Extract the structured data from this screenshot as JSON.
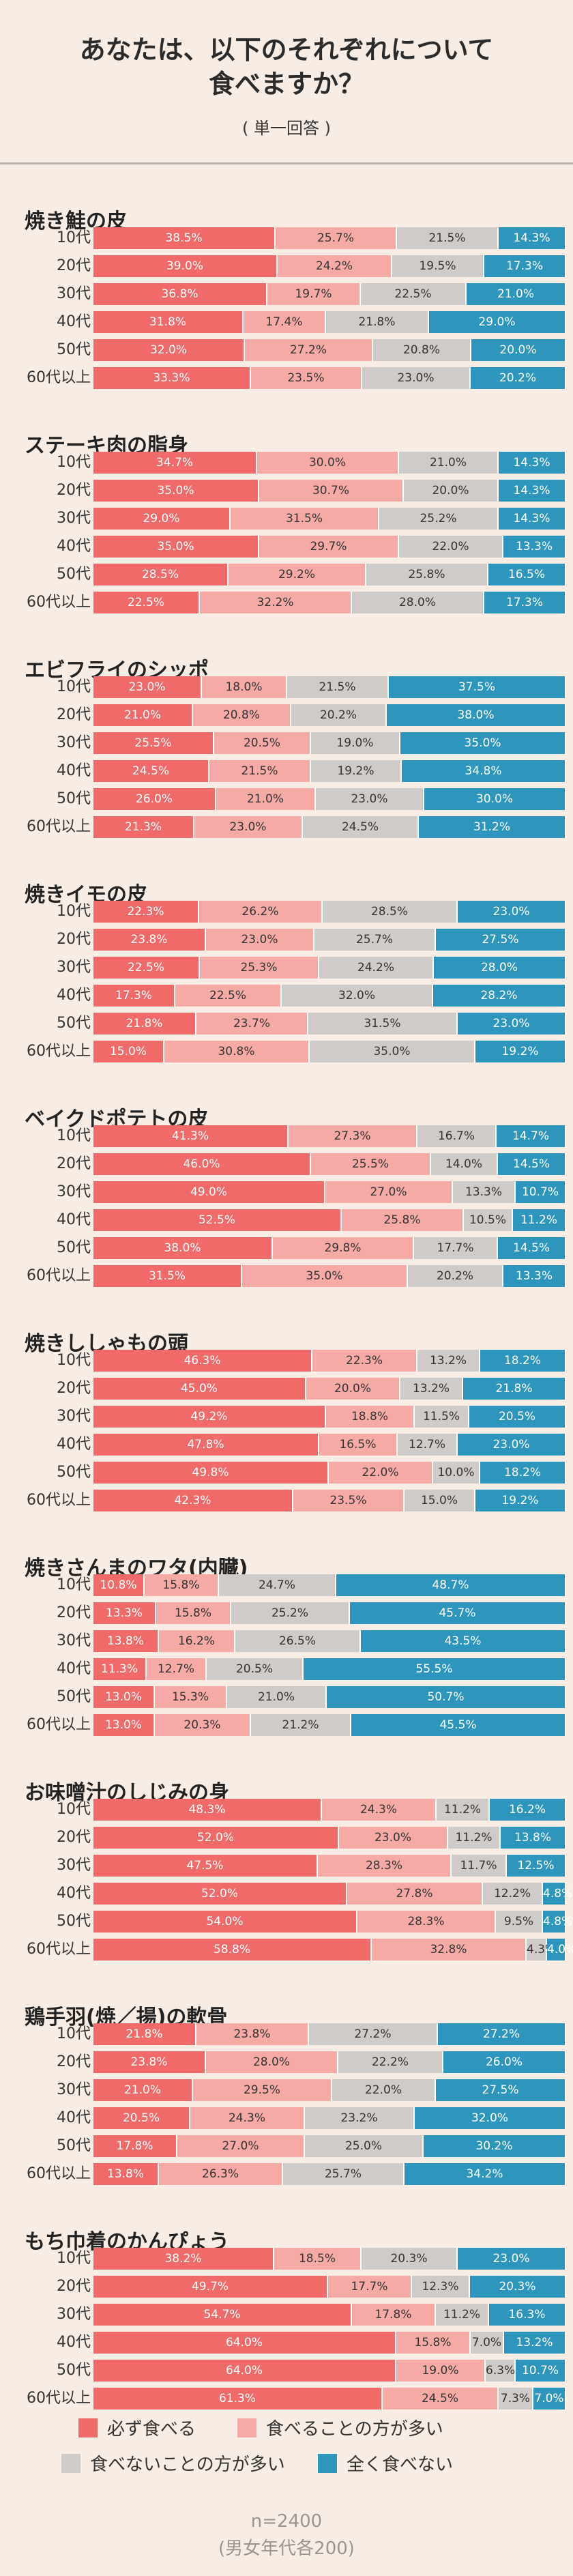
{
  "header": {
    "title_line1": "あなたは、以下のそれぞれについて",
    "title_line2": "食べますか？",
    "subtitle": "( 単一回答 )"
  },
  "legend": [
    {
      "label": "必ず食べる",
      "color": "#ef6a69"
    },
    {
      "label": "食べることの方が多い",
      "color": "#f5aaa6"
    },
    {
      "label": "食べないことの方が多い",
      "color": "#cfcbc8"
    },
    {
      "label": "全く食べない",
      "color": "#2e95bd"
    }
  ],
  "footer": {
    "n": "n=2400",
    "note": "(男女年代各200)"
  },
  "chart_data": {
    "type": "bar",
    "orientation": "horizontal",
    "stacked": true,
    "normalized": true,
    "unit": "%",
    "title": "あなたは、以下のそれぞれについて食べますか？",
    "series_names": [
      "必ず食べる",
      "食べることの方が多い",
      "食べないことの方が多い",
      "全く食べない"
    ],
    "categories": [
      "10代",
      "20代",
      "30代",
      "40代",
      "50代",
      "60代以上"
    ],
    "panels": [
      {
        "name": "焼き鮭の皮",
        "values": [
          [
            38.5,
            25.7,
            21.5,
            14.3
          ],
          [
            39.0,
            24.2,
            19.5,
            17.3
          ],
          [
            36.8,
            19.7,
            22.5,
            21.0
          ],
          [
            31.8,
            17.4,
            21.8,
            29.0
          ],
          [
            32.0,
            27.2,
            20.8,
            20.0
          ],
          [
            33.3,
            23.5,
            23.0,
            20.2
          ]
        ]
      },
      {
        "name": "ステーキ肉の脂身",
        "values": [
          [
            34.7,
            30.0,
            21.0,
            14.3
          ],
          [
            35.0,
            30.7,
            20.0,
            14.3
          ],
          [
            29.0,
            31.5,
            25.2,
            14.3
          ],
          [
            35.0,
            29.7,
            22.0,
            13.3
          ],
          [
            28.5,
            29.2,
            25.8,
            16.5
          ],
          [
            22.5,
            32.2,
            28.0,
            17.3
          ]
        ]
      },
      {
        "name": "エビフライのシッポ",
        "values": [
          [
            23.0,
            18.0,
            21.5,
            37.5
          ],
          [
            21.0,
            20.8,
            20.2,
            38.0
          ],
          [
            25.5,
            20.5,
            19.0,
            35.0
          ],
          [
            24.5,
            21.5,
            19.2,
            34.8
          ],
          [
            26.0,
            21.0,
            23.0,
            30.0
          ],
          [
            21.3,
            23.0,
            24.5,
            31.2
          ]
        ]
      },
      {
        "name": "焼きイモの皮",
        "values": [
          [
            22.3,
            26.2,
            28.5,
            23.0
          ],
          [
            23.8,
            23.0,
            25.7,
            27.5
          ],
          [
            22.5,
            25.3,
            24.2,
            28.0
          ],
          [
            17.3,
            22.5,
            32.0,
            28.2
          ],
          [
            21.8,
            23.7,
            31.5,
            23.0
          ],
          [
            15.0,
            30.8,
            35.0,
            19.2
          ]
        ]
      },
      {
        "name": "ベイクドポテトの皮",
        "values": [
          [
            41.3,
            27.3,
            16.7,
            14.7
          ],
          [
            46.0,
            25.5,
            14.0,
            14.5
          ],
          [
            49.0,
            27.0,
            13.3,
            10.7
          ],
          [
            52.5,
            25.8,
            10.5,
            11.2
          ],
          [
            38.0,
            29.8,
            17.7,
            14.5
          ],
          [
            31.5,
            35.0,
            20.2,
            13.3
          ]
        ]
      },
      {
        "name": "焼きししゃもの頭",
        "values": [
          [
            46.3,
            22.3,
            13.2,
            18.2
          ],
          [
            45.0,
            20.0,
            13.2,
            21.8
          ],
          [
            49.2,
            18.8,
            11.5,
            20.5
          ],
          [
            47.8,
            16.5,
            12.7,
            23.0
          ],
          [
            49.8,
            22.0,
            10.0,
            18.2
          ],
          [
            42.3,
            23.5,
            15.0,
            19.2
          ]
        ]
      },
      {
        "name": "焼きさんまのワタ(内臓)",
        "values": [
          [
            10.8,
            15.8,
            24.7,
            48.7
          ],
          [
            13.3,
            15.8,
            25.2,
            45.7
          ],
          [
            13.8,
            16.2,
            26.5,
            43.5
          ],
          [
            11.3,
            12.7,
            20.5,
            55.5
          ],
          [
            13.0,
            15.3,
            21.0,
            50.7
          ],
          [
            13.0,
            20.3,
            21.2,
            45.5
          ]
        ]
      },
      {
        "name": "お味噌汁のしじみの身",
        "values": [
          [
            48.3,
            24.3,
            11.2,
            16.2
          ],
          [
            52.0,
            23.0,
            11.2,
            13.8
          ],
          [
            47.5,
            28.3,
            11.7,
            12.5
          ],
          [
            52.0,
            27.8,
            12.2,
            4.8
          ],
          [
            54.0,
            28.3,
            9.5,
            4.8
          ],
          [
            58.8,
            32.8,
            4.3,
            4.0
          ]
        ]
      },
      {
        "name": "鶏手羽(焼／揚)の軟骨",
        "values": [
          [
            21.8,
            23.8,
            27.2,
            27.2
          ],
          [
            23.8,
            28.0,
            22.2,
            26.0
          ],
          [
            21.0,
            29.5,
            22.0,
            27.5
          ],
          [
            20.5,
            24.3,
            23.2,
            32.0
          ],
          [
            17.8,
            27.0,
            25.0,
            30.2
          ],
          [
            13.8,
            26.3,
            25.7,
            34.2
          ]
        ]
      },
      {
        "name": "もち巾着のかんぴょう",
        "values": [
          [
            38.2,
            18.5,
            20.3,
            23.0
          ],
          [
            49.7,
            17.7,
            12.3,
            20.3
          ],
          [
            54.7,
            17.8,
            11.2,
            16.3
          ],
          [
            64.0,
            15.8,
            7.0,
            13.2
          ],
          [
            64.0,
            19.0,
            6.3,
            10.7
          ],
          [
            61.3,
            24.5,
            7.3,
            7.0
          ]
        ]
      }
    ]
  }
}
